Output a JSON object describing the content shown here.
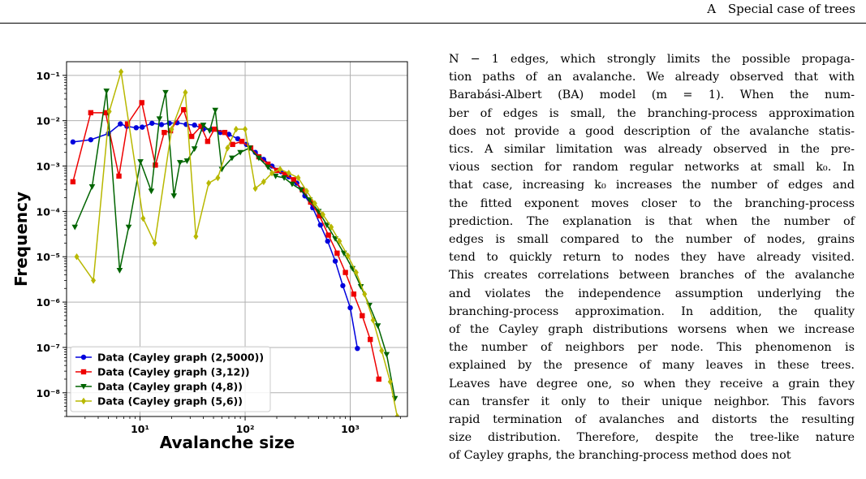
{
  "header": {
    "section_number": "A",
    "section_title": "Special case of trees"
  },
  "figure": {
    "chart_data": {
      "type": "line",
      "xlabel": "Avalanche size",
      "ylabel": "Frequency",
      "x_scale": "log",
      "y_scale": "log",
      "xlim": [
        2,
        3500
      ],
      "ylim": [
        3e-09,
        0.2
      ],
      "x_ticks": [
        10,
        100,
        1000
      ],
      "x_tick_labels": [
        "10¹",
        "10²",
        "10³"
      ],
      "y_ticks": [
        1e-08,
        1e-07,
        1e-06,
        1e-05,
        0.0001,
        0.001,
        0.01,
        0.1
      ],
      "y_tick_labels": [
        "10⁻⁸",
        "10⁻⁷",
        "10⁻⁶",
        "10⁻⁵",
        "10⁻⁴",
        "10⁻³",
        "10⁻²",
        "10⁻¹"
      ],
      "grid": true,
      "legend_position": "lower-left",
      "series": [
        {
          "name": "Data (Cayley graph (2,5000))",
          "color": "#0000dd",
          "marker": "circle",
          "points": [
            [
              2.3,
              0.0034
            ],
            [
              3.4,
              0.0038
            ],
            [
              5.0,
              0.0052
            ],
            [
              6.5,
              0.0085
            ],
            [
              7.5,
              0.0075
            ],
            [
              9.2,
              0.007
            ],
            [
              10.5,
              0.0072
            ],
            [
              13.0,
              0.0088
            ],
            [
              16.0,
              0.0082
            ],
            [
              19.0,
              0.0088
            ],
            [
              22.5,
              0.009
            ],
            [
              27.5,
              0.0083
            ],
            [
              33,
              0.008
            ],
            [
              40,
              0.0065
            ],
            [
              48,
              0.0065
            ],
            [
              58,
              0.0055
            ],
            [
              70,
              0.005
            ],
            [
              85,
              0.004
            ],
            [
              103,
              0.003
            ],
            [
              125,
              0.002
            ],
            [
              150,
              0.0014
            ],
            [
              180,
              0.001
            ],
            [
              220,
              0.00075
            ],
            [
              260,
              0.00058
            ],
            [
              310,
              0.00042
            ],
            [
              370,
              0.00022
            ],
            [
              440,
              0.00012
            ],
            [
              520,
              5e-05
            ],
            [
              610,
              2.2e-05
            ],
            [
              720,
              8e-06
            ],
            [
              850,
              2.3e-06
            ],
            [
              1000,
              7.5e-07
            ],
            [
              1170,
              9.5e-08
            ]
          ]
        },
        {
          "name": "Data (Cayley graph (3,12))",
          "color": "#ee0000",
          "marker": "square",
          "points": [
            [
              2.3,
              0.00045
            ],
            [
              3.4,
              0.015
            ],
            [
              4.7,
              0.015
            ],
            [
              6.3,
              0.0006
            ],
            [
              7.6,
              0.0085
            ],
            [
              10.4,
              0.025
            ],
            [
              14.0,
              0.00105
            ],
            [
              17.0,
              0.0055
            ],
            [
              19.5,
              0.006
            ],
            [
              26.0,
              0.0175
            ],
            [
              31.0,
              0.0045
            ],
            [
              38.0,
              0.0075
            ],
            [
              44.0,
              0.0035
            ],
            [
              51.0,
              0.0065
            ],
            [
              64.0,
              0.0055
            ],
            [
              76.0,
              0.003
            ],
            [
              93.0,
              0.0035
            ],
            [
              113,
              0.0025
            ],
            [
              135,
              0.0016
            ],
            [
              165,
              0.0011
            ],
            [
              200,
              0.0008
            ],
            [
              240,
              0.00065
            ],
            [
              290,
              0.0005
            ],
            [
              350,
              0.0003
            ],
            [
              420,
              0.00016
            ],
            [
              510,
              8e-05
            ],
            [
              620,
              3e-05
            ],
            [
              750,
              1.2e-05
            ],
            [
              900,
              4.5e-06
            ],
            [
              1080,
              1.5e-06
            ],
            [
              1300,
              5e-07
            ],
            [
              1550,
              1.5e-07
            ],
            [
              1870,
              2e-08
            ]
          ]
        },
        {
          "name": "Data (Cayley graph (4,8))",
          "color": "#006400",
          "marker": "triangle-down",
          "points": [
            [
              2.4,
              4.5e-05
            ],
            [
              3.5,
              0.00035
            ],
            [
              4.8,
              0.045
            ],
            [
              6.4,
              5e-06
            ],
            [
              7.8,
              4.5e-05
            ],
            [
              10.1,
              0.00125
            ],
            [
              12.8,
              0.00028
            ],
            [
              15.3,
              0.011
            ],
            [
              17.5,
              0.042
            ],
            [
              21.0,
              0.00022
            ],
            [
              24.0,
              0.0012
            ],
            [
              28.0,
              0.0013
            ],
            [
              33.0,
              0.0024
            ],
            [
              40.0,
              0.008
            ],
            [
              46.0,
              0.006
            ],
            [
              52.0,
              0.017
            ],
            [
              60.0,
              0.00085
            ],
            [
              75.0,
              0.0015
            ],
            [
              90.0,
              0.002
            ],
            [
              110,
              0.0025
            ],
            [
              135,
              0.0015
            ],
            [
              165,
              0.00095
            ],
            [
              195,
              0.0006
            ],
            [
              235,
              0.00055
            ],
            [
              280,
              0.0004
            ],
            [
              340,
              0.0003
            ],
            [
              410,
              0.00018
            ],
            [
              500,
              0.0001
            ],
            [
              600,
              5e-05
            ],
            [
              720,
              2.5e-05
            ],
            [
              870,
              1.2e-05
            ],
            [
              1050,
              5.5e-06
            ],
            [
              1260,
              2.2e-06
            ],
            [
              1520,
              8.5e-07
            ],
            [
              1830,
              3e-07
            ],
            [
              2220,
              7e-08
            ],
            [
              2660,
              7.5e-09
            ]
          ]
        },
        {
          "name": "Data (Cayley graph (5,6))",
          "color": "#b8b800",
          "marker": "diamond",
          "points": [
            [
              2.5,
              1e-05
            ],
            [
              3.6,
              3e-06
            ],
            [
              5.1,
              0.016
            ],
            [
              6.6,
              0.12
            ],
            [
              10.7,
              7e-05
            ],
            [
              13.8,
              2e-05
            ],
            [
              20.0,
              0.0065
            ],
            [
              27.0,
              0.042
            ],
            [
              34.0,
              2.8e-05
            ],
            [
              45.0,
              0.00042
            ],
            [
              55.0,
              0.00055
            ],
            [
              68.0,
              0.0025
            ],
            [
              82.0,
              0.0065
            ],
            [
              100,
              0.0065
            ],
            [
              125,
              0.00032
            ],
            [
              150,
              0.00045
            ],
            [
              180,
              0.0007
            ],
            [
              215,
              0.00085
            ],
            [
              260,
              0.0007
            ],
            [
              320,
              0.00055
            ],
            [
              385,
              0.00028
            ],
            [
              460,
              0.00015
            ],
            [
              550,
              8.5e-05
            ],
            [
              660,
              4.5e-05
            ],
            [
              790,
              2.2e-05
            ],
            [
              950,
              1.05e-05
            ],
            [
              1140,
              4.5e-06
            ],
            [
              1370,
              1.5e-06
            ],
            [
              1650,
              4e-07
            ],
            [
              1990,
              8.5e-08
            ],
            [
              2400,
              1.75e-08
            ],
            [
              2800,
              3e-09
            ]
          ]
        }
      ]
    }
  },
  "body_lines": [
    "N − 1 edges, which strongly limits the possible propaga-",
    "tion paths of an avalanche. We already observed that with",
    "Barabási-Albert (BA) model (m = 1). When the num-",
    "ber of edges is small, the branching-process approximation",
    "does not provide a good description of the avalanche statis-",
    "tics. A similar limitation was already observed in the pre-",
    "vious section for random regular networks at small k₀. In",
    "that case, increasing k₀ increases the number of edges and",
    "the fitted exponent moves closer to the branching-process",
    "prediction. The explanation is that when the number of",
    "edges is small compared to the number of nodes, grains",
    "tend to quickly return to nodes they have already visited.",
    "This creates correlations between branches of the avalanche",
    "and violates the independence assumption underlying the",
    "branching-process approximation. In addition, the quality",
    "of the Cayley graph distributions worsens when we increase",
    "the number of neighbors per node. This phenomenon is",
    "explained by the presence of many leaves in these trees.",
    "Leaves have degree one, so when they receive a grain they",
    "can transfer it only to their unique neighbor. This favors",
    "rapid termination of avalanches and distorts the resulting",
    "size distribution. Therefore, despite the tree-like nature",
    "of Cayley graphs, the branching-process method does not"
  ]
}
